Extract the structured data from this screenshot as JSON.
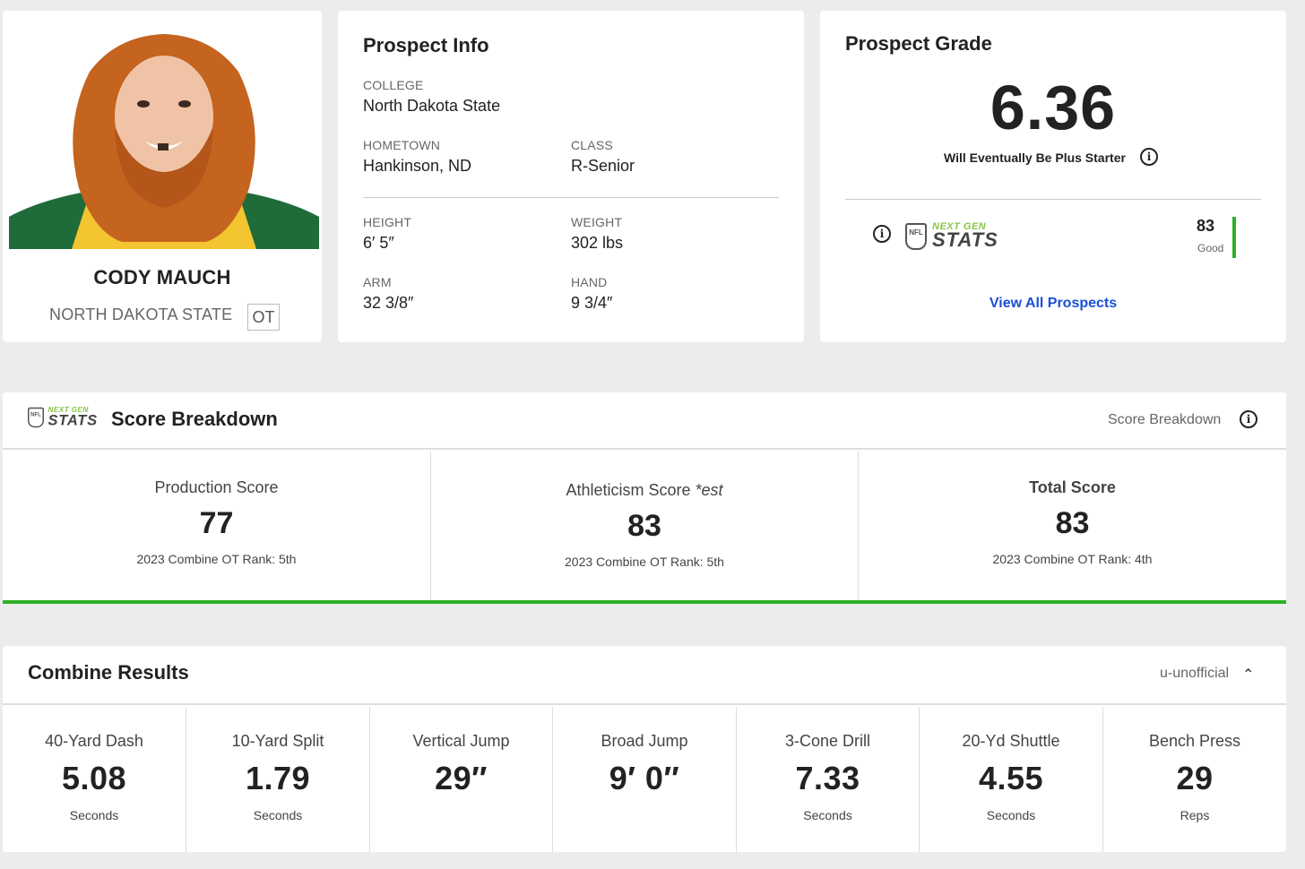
{
  "player": {
    "name": "CODY MAUCH",
    "school": "NORTH DAKOTA STATE",
    "position": "OT"
  },
  "prospect_info": {
    "title": "Prospect Info",
    "college_label": "COLLEGE",
    "college": "North Dakota State",
    "hometown_label": "HOMETOWN",
    "hometown": "Hankinson, ND",
    "class_label": "CLASS",
    "class": "R-Senior",
    "height_label": "HEIGHT",
    "height": "6′ 5″",
    "weight_label": "WEIGHT",
    "weight": "302 lbs",
    "arm_label": "ARM",
    "arm": "32 3/8″",
    "hand_label": "HAND",
    "hand": "9 3/4″"
  },
  "prospect_grade": {
    "title": "Prospect Grade",
    "grade": "6.36",
    "description": "Will Eventually Be Plus Starter",
    "ngs_next": "NEXT GEN",
    "ngs_stats": "STATS",
    "ngs_score": "83",
    "ngs_score_label": "Good",
    "view_all": "View All Prospects"
  },
  "score_breakdown": {
    "title": "Score Breakdown",
    "header_right": "Score Breakdown",
    "scores": [
      {
        "name": "Production Score",
        "est": "",
        "value": "77",
        "rank": "2023 Combine OT Rank: 5th"
      },
      {
        "name": "Athleticism Score",
        "est": " *est",
        "value": "83",
        "rank": "2023 Combine OT Rank: 5th"
      },
      {
        "name": "Total Score",
        "est": "",
        "value": "83",
        "rank": "2023 Combine OT Rank: 4th"
      }
    ]
  },
  "combine": {
    "title": "Combine Results",
    "unofficial": "u-unofficial",
    "drills": [
      {
        "name": "40-Yard Dash",
        "value": "5.08",
        "unit": "Seconds"
      },
      {
        "name": "10-Yard Split",
        "value": "1.79",
        "unit": "Seconds"
      },
      {
        "name": "Vertical Jump",
        "value": "29″",
        "unit": ""
      },
      {
        "name": "Broad Jump",
        "value": "9′ 0″",
        "unit": ""
      },
      {
        "name": "3-Cone Drill",
        "value": "7.33",
        "unit": "Seconds"
      },
      {
        "name": "20-Yd Shuttle",
        "value": "4.55",
        "unit": "Seconds"
      },
      {
        "name": "Bench Press",
        "value": "29",
        "unit": "Reps"
      }
    ]
  },
  "colors": {
    "accent_green": "#2db024",
    "link_blue": "#1a4fd6"
  }
}
